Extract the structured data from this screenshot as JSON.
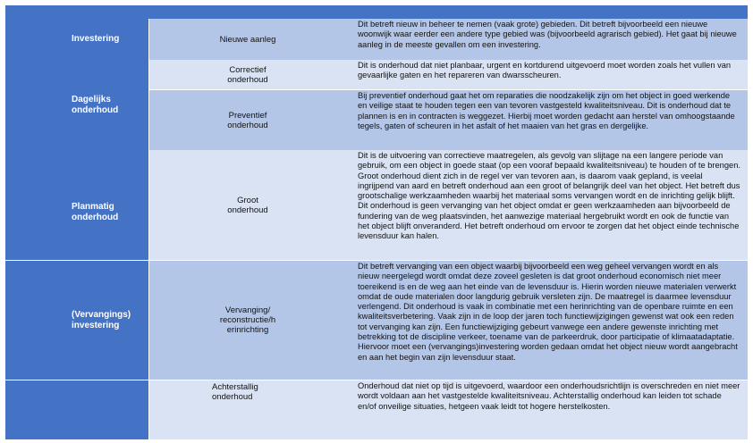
{
  "table": {
    "colors": {
      "header": "#4472c4",
      "row_dark": "#b4c6e7",
      "row_light": "#dae3f3",
      "category_text": "#ffffff"
    },
    "categories": [
      {
        "label": "Investering"
      },
      {
        "label": "Dagelijks onderhoud"
      },
      {
        "label": "Planmatig onderhoud"
      },
      {
        "label": "(Vervangings) investering"
      }
    ],
    "rows": [
      {
        "type": "Nieuwe aanleg",
        "description": "Dit betreft nieuw in beheer te nemen (vaak grote) gebieden. Dit betreft bijvoorbeeld een nieuwe woonwijk waar eerder een andere type gebied was (bijvoorbeeld agrarisch gebied). Het gaat bij nieuwe aanleg in de meeste gevallen om een investering."
      },
      {
        "type": "Correctief onderhoud",
        "description": "Dit is onderhoud dat niet planbaar, urgent en kortdurend uitgevoerd moet worden zoals het vullen van gevaarlijke gaten en het repareren van dwarsscheuren."
      },
      {
        "type": "Preventief onderhoud",
        "description": "Bij preventief onderhoud gaat het om reparaties die noodzakelijk zijn om het object in goed werkende en veilige staat te houden tegen een van tevoren vastgesteld kwaliteitsniveau. Dit is onderhoud dat te plannen is en in contracten is weggezet. Hierbij moet worden gedacht aan herstel van omhoogstaande tegels, gaten of scheuren in het asfalt of het maaien van het gras en dergelijke."
      },
      {
        "type": "Groot onderhoud",
        "description": "Dit is de uitvoering van correctieve maatregelen, als gevolg van slijtage na een langere periode van gebruik, om een object in goede staat (op een vooraf bepaald kwaliteitsniveau) te houden of te brengen. Groot onderhoud dient zich in de regel ver van tevoren aan, is daarom vaak gepland, is veelal ingrijpend van aard en betreft onderhoud aan een groot of belangrijk deel van het object. Het betreft dus grootschalige werkzaamheden waarbij het materiaal soms vervangen wordt en de inrichting gelijk blijft. Dit onderhoud is geen vervanging van het object omdat er geen werkzaamheden aan bijvoorbeeld de fundering van de weg plaatsvinden, het aanwezige materiaal hergebruikt wordt en ook de functie van het object blijft onveranderd. Het betreft onderhoud om ervoor te zorgen dat het object einde technische levensduur kan halen."
      },
      {
        "type": "Vervanging/ reconstructie/h erinrichting",
        "description": "Dit betreft vervanging van een object waarbij bijvoorbeeld een weg geheel vervangen wordt en als nieuw neergelegd wordt omdat deze zoveel gesleten is dat groot onderhoud economisch niet meer toereikend is en de weg aan het einde van de levensduur is. Hierin worden nieuwe materialen verwerkt omdat de oude materialen door langdurig gebruik versleten zijn. De maatregel is daarmee levensduur verlengend. Dit onderhoud is vaak in combinatie met een herinrichting van de openbare ruimte en een kwaliteitsverbetering. Vaak zijn in de loop der jaren toch functiewijzigingen gewenst wat ook een reden tot vervanging kan zijn. Een functiewijziging gebeurt vanwege een andere gewenste inrichting met betrekking tot de discipline verkeer, toename van de parkeerdruk, door participatie of klimaatadaptatie. Hiervoor moet een (vervangings)investering worden gedaan omdat het object nieuw wordt aangebracht en aan het begin van zijn levensduur staat."
      },
      {
        "type": "Achterstallig onderhoud",
        "description": "Onderhoud dat niet op tijd is uitgevoerd, waardoor een onderhoudsrichtlijn is overschreden en niet meer wordt voldaan aan het vastgestelde kwaliteitsniveau. Achterstallig onderhoud kan leiden tot schade en/of onveilige situaties, hetgeen vaak leidt tot hogere herstelkosten."
      }
    ]
  }
}
